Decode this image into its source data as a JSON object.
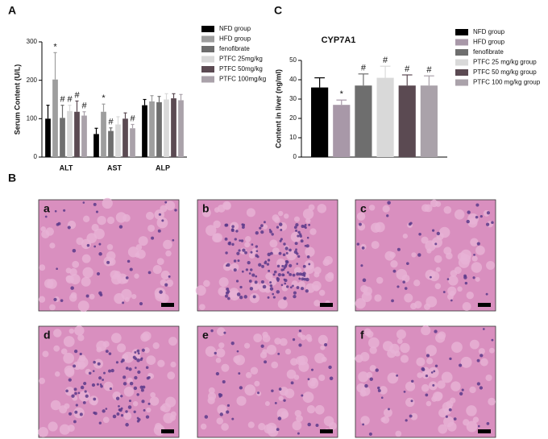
{
  "panels": {
    "a": "A",
    "b": "B",
    "c": "C"
  },
  "histology": {
    "images": [
      "a",
      "b",
      "c",
      "d",
      "e",
      "f"
    ]
  },
  "chart_data": [
    {
      "type": "bar",
      "y_label": "Serum Content (U/L)",
      "categories": [
        "ALT",
        "AST",
        "ALP"
      ],
      "ylim": [
        0,
        300
      ],
      "yticks": [
        0,
        100,
        200,
        300
      ],
      "series": [
        {
          "name": "NFD group",
          "color": "#000000",
          "values": [
            100,
            60,
            135
          ],
          "errors": [
            35,
            15,
            15
          ],
          "sig": [
            null,
            null,
            null
          ]
        },
        {
          "name": "HFD group",
          "color": "#9e9e9e",
          "values": [
            202,
            118,
            145
          ],
          "errors": [
            70,
            20,
            15
          ],
          "sig": [
            "*",
            "*",
            null
          ]
        },
        {
          "name": "fenofibrate",
          "color": "#6e6e6e",
          "values": [
            102,
            68,
            143
          ],
          "errors": [
            33,
            8,
            15
          ],
          "sig": [
            "#",
            "#",
            null
          ]
        },
        {
          "name": "PTFC 25mg/kg",
          "color": "#d9d9d9",
          "values": [
            120,
            85,
            150
          ],
          "errors": [
            15,
            20,
            15
          ],
          "sig": [
            "#",
            null,
            null
          ]
        },
        {
          "name": "PTFC 50mg/kg",
          "color": "#5b4a52",
          "values": [
            118,
            100,
            153
          ],
          "errors": [
            28,
            15,
            12
          ],
          "sig": [
            "#",
            null,
            null
          ]
        },
        {
          "name": "PTFC 100mg/kg",
          "color": "#aaa2aa",
          "values": [
            108,
            75,
            148
          ],
          "errors": [
            10,
            10,
            15
          ],
          "sig": [
            "#",
            "#",
            null
          ]
        }
      ]
    },
    {
      "type": "bar",
      "title": "CYP7A1",
      "y_label": "Content in liver (ng/ml)",
      "ylim": [
        0,
        50
      ],
      "yticks": [
        0,
        10,
        20,
        30,
        40,
        50
      ],
      "series": [
        {
          "name": "NFD group",
          "color": "#000000",
          "values": [
            36
          ],
          "errors": [
            5
          ],
          "sig": [
            null
          ]
        },
        {
          "name": "HFD group",
          "color": "#a898a8",
          "values": [
            27
          ],
          "errors": [
            2.5
          ],
          "sig": [
            "*"
          ]
        },
        {
          "name": "fenofibrate",
          "color": "#6e6e6e",
          "values": [
            37
          ],
          "errors": [
            6
          ],
          "sig": [
            "#"
          ]
        },
        {
          "name": "PTFC 25 mg/kg group",
          "color": "#d9d9d9",
          "values": [
            41
          ],
          "errors": [
            6
          ],
          "sig": [
            "#"
          ]
        },
        {
          "name": "PTFC 50 mg/kg group",
          "color": "#5b4a52",
          "values": [
            37
          ],
          "errors": [
            5.5
          ],
          "sig": [
            "#"
          ]
        },
        {
          "name": "PTFC 100 mg/kg group",
          "color": "#aaa2aa",
          "values": [
            37
          ],
          "errors": [
            5
          ],
          "sig": [
            "#"
          ]
        }
      ]
    }
  ]
}
